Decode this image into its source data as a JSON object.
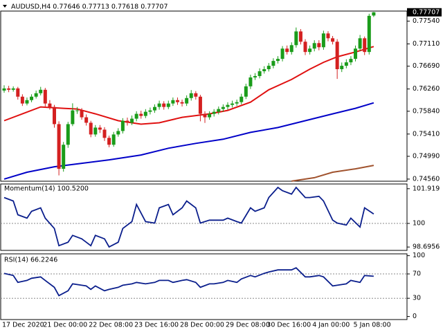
{
  "chart_data": [
    {
      "type": "candlestick",
      "title": "AUDUSD,H4  0.77646 0.77713 0.77618 0.77707",
      "categories": [
        "17 Dec 2020",
        null,
        null,
        null,
        null,
        null,
        null,
        null,
        null,
        "21 Dec 00:00",
        null,
        null,
        null,
        null,
        null,
        null,
        null,
        null,
        null,
        "22 Dec 08:00",
        null,
        null,
        null,
        null,
        null,
        null,
        null,
        null,
        null,
        "23 Dec 16:00",
        null,
        null,
        null,
        null,
        null,
        null,
        null,
        null,
        null,
        "28 Dec 00:00",
        null,
        null,
        null,
        null,
        null,
        null,
        null,
        null,
        null,
        "29 Dec 08:00",
        null,
        null,
        null,
        null,
        null,
        null,
        null,
        null,
        "30 Dec 16:00",
        null,
        null,
        null,
        null,
        null,
        null,
        null,
        null,
        null,
        "4 Jan 00:00",
        null,
        null,
        null,
        null,
        null,
        null,
        null,
        null,
        "5 Jan 08:00",
        null,
        null,
        null,
        null
      ],
      "open": [
        0.7623,
        0.76271,
        0.76245,
        0.76271,
        0.76115,
        0.75986,
        0.7605,
        0.76115,
        0.7618,
        0.76245,
        0.75986,
        0.75921,
        0.75597,
        0.74754,
        0.75208,
        0.75597,
        0.75856,
        0.75856,
        0.75726,
        0.75623,
        0.75402,
        0.75532,
        0.75493,
        0.75338,
        0.75208,
        0.75402,
        0.75467,
        0.75662,
        0.75623,
        0.757,
        0.75791,
        0.75752,
        0.7583,
        0.75856,
        0.75921,
        0.75986,
        0.75921,
        0.75986,
        0.7605,
        0.76012,
        0.75986,
        0.76089,
        0.7618,
        0.76115,
        0.75791,
        0.75726,
        0.75791,
        0.7583,
        0.75882,
        0.75921,
        0.7596,
        0.75986,
        0.76012,
        0.76115,
        0.7631,
        0.76478,
        0.76504,
        0.76595,
        0.76634,
        0.76698,
        0.76789,
        0.76828,
        0.77022,
        0.76958,
        0.77087,
        0.77346,
        0.77152,
        0.76958,
        0.77022,
        0.77126,
        0.77048,
        0.77308,
        0.77217,
        0.77152,
        0.76634,
        0.76698,
        0.76763,
        0.76828,
        0.77022,
        0.77217,
        0.76958,
        0.77646
      ],
      "high": [
        0.7633,
        0.7632,
        0.7631,
        0.763,
        0.7616,
        0.761,
        0.7616,
        0.7623,
        0.763,
        0.7628,
        0.7605,
        0.7596,
        0.7565,
        0.7526,
        0.7564,
        0.7599,
        0.7592,
        0.759,
        0.7578,
        0.7566,
        0.7558,
        0.7558,
        0.7554,
        0.7538,
        0.7545,
        0.7552,
        0.7571,
        0.7572,
        0.7576,
        0.7584,
        0.7585,
        0.7588,
        0.7591,
        0.7597,
        0.7604,
        0.7603,
        0.7604,
        0.761,
        0.761,
        0.7606,
        0.7614,
        0.7624,
        0.7622,
        0.7615,
        0.7584,
        0.7584,
        0.7588,
        0.7593,
        0.7597,
        0.7601,
        0.7604,
        0.7606,
        0.7617,
        0.7636,
        0.7653,
        0.7656,
        0.7665,
        0.7669,
        0.7675,
        0.7684,
        0.7688,
        0.7707,
        0.7708,
        0.7714,
        0.7742,
        0.7739,
        0.772,
        0.7708,
        0.7718,
        0.7718,
        0.7736,
        0.7735,
        0.7726,
        0.772,
        0.7676,
        0.7682,
        0.7688,
        0.7708,
        0.7728,
        0.7725,
        0.7768,
        0.77713
      ],
      "low": [
        0.7619,
        0.762,
        0.7621,
        0.7606,
        0.7594,
        0.7595,
        0.7601,
        0.7608,
        0.7614,
        0.7593,
        0.7587,
        0.7553,
        0.7463,
        0.747,
        0.7515,
        0.7556,
        0.7579,
        0.7568,
        0.7557,
        0.7535,
        0.7536,
        0.7543,
        0.7528,
        0.7516,
        0.7517,
        0.7536,
        0.7542,
        0.7557,
        0.7558,
        0.7565,
        0.757,
        0.7571,
        0.7578,
        0.7581,
        0.7587,
        0.7587,
        0.7588,
        0.7594,
        0.7596,
        0.7593,
        0.7594,
        0.7604,
        0.7606,
        0.7565,
        0.7562,
        0.7568,
        0.7574,
        0.7578,
        0.7583,
        0.7587,
        0.7591,
        0.7594,
        0.7597,
        0.7607,
        0.7626,
        0.7643,
        0.7646,
        0.7655,
        0.7659,
        0.7665,
        0.7674,
        0.7678,
        0.7691,
        0.7691,
        0.7704,
        0.771,
        0.769,
        0.7691,
        0.7697,
        0.7699,
        0.77,
        0.7716,
        0.771,
        0.7645,
        0.7658,
        0.7665,
        0.7671,
        0.7678,
        0.7697,
        0.769,
        0.7691,
        0.77618
      ],
      "close": [
        0.76271,
        0.76245,
        0.76271,
        0.76115,
        0.75986,
        0.7605,
        0.76115,
        0.7618,
        0.76245,
        0.75986,
        0.75921,
        0.75597,
        0.74754,
        0.75208,
        0.75597,
        0.75856,
        0.75856,
        0.75726,
        0.75623,
        0.75402,
        0.75532,
        0.75493,
        0.75338,
        0.75208,
        0.75402,
        0.75467,
        0.75662,
        0.75623,
        0.757,
        0.75791,
        0.75752,
        0.7583,
        0.75856,
        0.75921,
        0.75986,
        0.75921,
        0.75986,
        0.7605,
        0.76012,
        0.75986,
        0.76089,
        0.7618,
        0.76115,
        0.75791,
        0.75726,
        0.75791,
        0.7583,
        0.75882,
        0.75921,
        0.7596,
        0.75986,
        0.76012,
        0.76115,
        0.7631,
        0.76478,
        0.76504,
        0.76595,
        0.76634,
        0.76698,
        0.76789,
        0.76828,
        0.77022,
        0.76958,
        0.77087,
        0.77346,
        0.77152,
        0.76958,
        0.77022,
        0.77126,
        0.77048,
        0.77308,
        0.77217,
        0.77152,
        0.76634,
        0.76698,
        0.76763,
        0.76828,
        0.77022,
        0.77217,
        0.76958,
        0.7764,
        0.77707
      ],
      "up_color": "#1a9c1a",
      "down_color": "#d42020",
      "series": [
        {
          "color": "#e01010",
          "x": [
            0,
            4,
            8,
            13,
            16,
            20,
            25,
            30,
            34,
            39,
            45,
            49,
            54,
            58,
            63,
            67,
            70,
            73,
            77,
            81
          ],
          "values": [
            0.75662,
            0.75791,
            0.75921,
            0.75895,
            0.75882,
            0.75791,
            0.75662,
            0.75597,
            0.75623,
            0.75726,
            0.75791,
            0.75856,
            0.76012,
            0.76245,
            0.76439,
            0.76634,
            0.76763,
            0.76867,
            0.76958,
            0.77061
          ]
        },
        {
          "color": "#0000c8",
          "x": [
            0,
            5,
            11,
            17,
            23,
            30,
            36,
            42,
            48,
            54,
            60,
            66,
            72,
            77,
            81
          ],
          "values": [
            0.7456,
            0.7469,
            0.74793,
            0.74858,
            0.74923,
            0.75014,
            0.75143,
            0.75234,
            0.75312,
            0.75441,
            0.75532,
            0.75662,
            0.75791,
            0.75895,
            0.75999
          ]
        },
        {
          "color": "#a0522d",
          "x": [
            63,
            68,
            72,
            77,
            81
          ],
          "values": [
            0.74521,
            0.74586,
            0.7469,
            0.74754,
            0.74819
          ]
        }
      ],
      "xlim": [
        -0.76,
        88.3
      ],
      "ylim": [
        0.7452,
        0.7773
      ],
      "yticks": [
        {
          "value": 0.7754,
          "label": "0.77540"
        },
        {
          "value": 0.7711,
          "label": "0.77110"
        },
        {
          "value": 0.7669,
          "label": "0.76690"
        },
        {
          "value": 0.7626,
          "label": "0.76260"
        },
        {
          "value": 0.7584,
          "label": "0.75840"
        },
        {
          "value": 0.7541,
          "label": "0.75410"
        },
        {
          "value": 0.7499,
          "label": "0.74990"
        },
        {
          "value": 0.7456,
          "label": "0.74560"
        }
      ]
    },
    {
      "type": "line",
      "title": "Momentum(14) 100.5200",
      "color": "#0a1e8c",
      "x": [
        0,
        2,
        3,
        5,
        6,
        8,
        9,
        11,
        12,
        14,
        15,
        17,
        18,
        19,
        20,
        22,
        23,
        25,
        26,
        28,
        29,
        31,
        33,
        34,
        36,
        37,
        39,
        40,
        42,
        43,
        45,
        46,
        48,
        49,
        51,
        52,
        54,
        55,
        57,
        58,
        60,
        61,
        63,
        64,
        66,
        67,
        69,
        70,
        72,
        73,
        75,
        76,
        78,
        79,
        81
      ],
      "values": [
        101.43,
        101.24,
        100.48,
        100.29,
        100.67,
        100.86,
        100.29,
        99.72,
        98.77,
        98.96,
        99.34,
        99.15,
        98.96,
        98.77,
        99.34,
        99.15,
        98.7,
        98.96,
        99.72,
        100.1,
        101.05,
        100.1,
        100.02,
        100.86,
        101.05,
        100.48,
        100.86,
        101.24,
        100.86,
        100.02,
        100.18,
        100.18,
        100.18,
        100.29,
        100.1,
        100.02,
        100.86,
        100.67,
        100.86,
        101.43,
        101.99,
        101.81,
        101.62,
        101.99,
        101.43,
        101.43,
        101.5,
        101.24,
        100.18,
        100.02,
        99.91,
        100.29,
        99.8,
        100.86,
        100.52
      ],
      "xlim": [
        -0.76,
        88.3
      ],
      "ylim": [
        98.51,
        102.18
      ],
      "yticks": [
        101.919,
        100,
        98.6956
      ],
      "levels": [
        100
      ]
    },
    {
      "type": "line",
      "title": "RSI(14) 66.2246",
      "color": "#0a1e8c",
      "x": [
        0,
        2,
        3,
        5,
        6,
        8,
        9,
        11,
        12,
        14,
        15,
        17,
        18,
        19,
        20,
        22,
        23,
        25,
        26,
        28,
        29,
        31,
        33,
        34,
        36,
        37,
        39,
        40,
        42,
        43,
        45,
        46,
        48,
        49,
        51,
        52,
        54,
        55,
        57,
        58,
        60,
        61,
        63,
        64,
        66,
        67,
        69,
        70,
        72,
        73,
        75,
        76,
        78,
        79,
        81
      ],
      "values": [
        70.9,
        67.4,
        56.0,
        59.4,
        62.9,
        65.1,
        59.4,
        48.0,
        34.3,
        42.3,
        53.7,
        51.4,
        50.3,
        44.6,
        50.3,
        42.3,
        44.6,
        48.0,
        51.4,
        53.7,
        56.0,
        53.7,
        56.0,
        59.4,
        59.4,
        56.0,
        59.4,
        60.6,
        56.0,
        48.0,
        53.7,
        53.7,
        56.0,
        59.4,
        56.0,
        61.7,
        67.4,
        65.1,
        70.9,
        73.1,
        76.6,
        76.6,
        76.6,
        80.0,
        65.1,
        65.1,
        67.4,
        65.1,
        50.3,
        51.4,
        53.7,
        59.4,
        56.0,
        67.4,
        66.2
      ],
      "xlim": [
        -0.76,
        88.3
      ],
      "ylim": [
        -5,
        103
      ],
      "yticks": [
        100,
        70,
        30,
        0
      ],
      "levels": [
        70,
        30
      ]
    }
  ]
}
